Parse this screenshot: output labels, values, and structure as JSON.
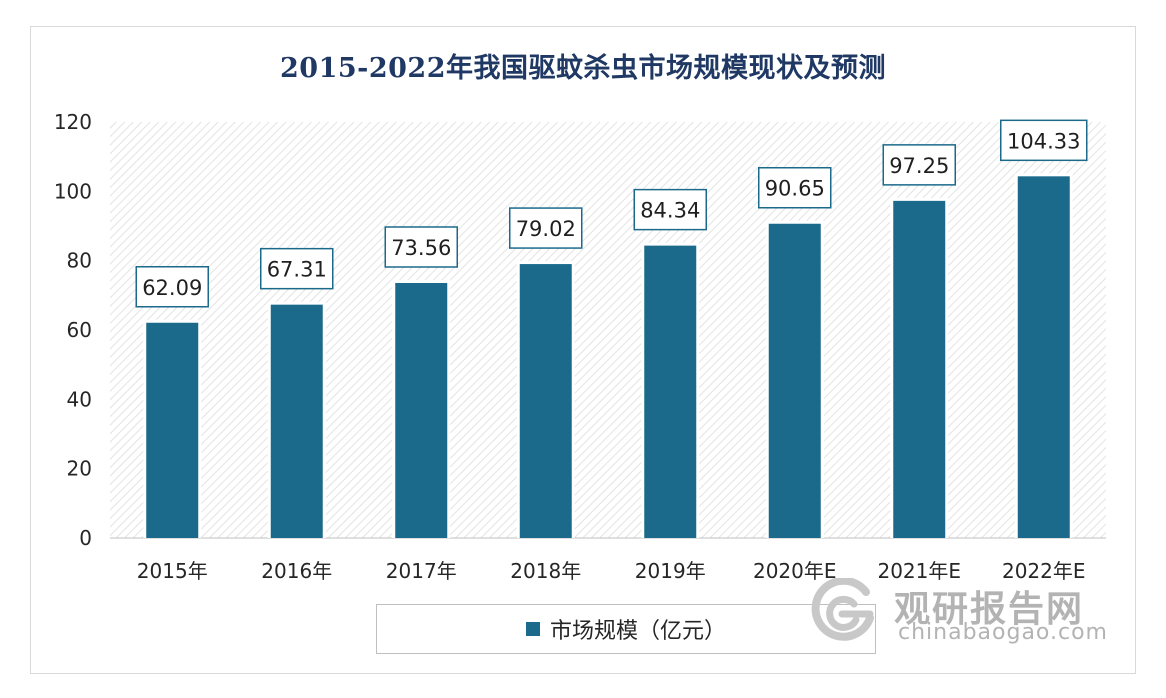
{
  "chart_data": {
    "type": "bar",
    "title": "2015-2022年我国驱蚊杀虫市场规模现状及预测",
    "categories": [
      "2015年",
      "2016年",
      "2017年",
      "2018年",
      "2019年",
      "2020年E",
      "2021年E",
      "2022年E"
    ],
    "series": [
      {
        "name": "市场规模（亿元）",
        "values": [
          62.09,
          67.31,
          73.56,
          79.02,
          84.34,
          90.65,
          97.25,
          104.33
        ]
      }
    ],
    "value_labels": [
      "62.09",
      "67.31",
      "73.56",
      "79.02",
      "84.34",
      "90.65",
      "97.25",
      "104.33"
    ],
    "ylim": [
      0,
      120
    ],
    "yticks": [
      0,
      20,
      40,
      60,
      80,
      100,
      120
    ],
    "legend_position": "bottom",
    "grid": false,
    "bar_color": "#1b6a8c"
  },
  "watermark": {
    "name": "观研报告网",
    "url": "chinabaogao.com"
  }
}
